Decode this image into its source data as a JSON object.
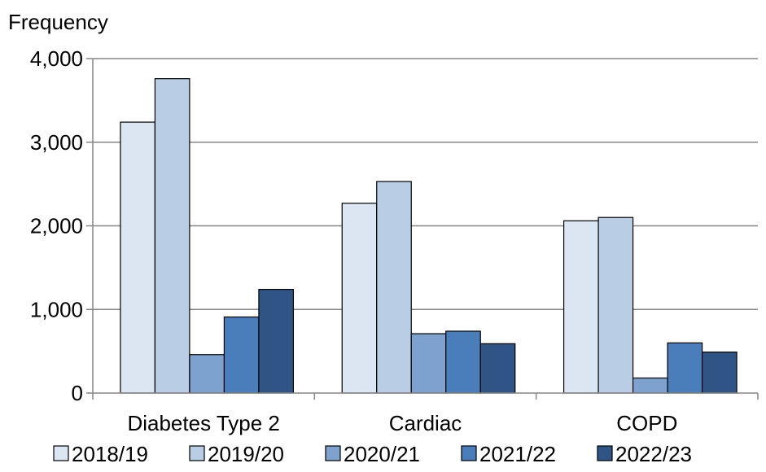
{
  "chart_data": {
    "type": "bar",
    "title": "",
    "xlabel": "",
    "ylabel": "Frequency",
    "ylim": [
      0,
      4000
    ],
    "yticks": [
      0,
      1000,
      2000,
      3000,
      4000
    ],
    "ytick_labels": [
      "0",
      "1,000",
      "2,000",
      "3,000",
      "4,000"
    ],
    "grid": "horizontal",
    "legend_position": "bottom",
    "categories": [
      "Diabetes Type 2",
      "Cardiac",
      "COPD"
    ],
    "series": [
      {
        "name": "2018/19",
        "color": "#dce6f2",
        "values": [
          3240,
          2270,
          2060
        ]
      },
      {
        "name": "2019/20",
        "color": "#b9cde5",
        "values": [
          3760,
          2530,
          2100
        ]
      },
      {
        "name": "2020/21",
        "color": "#7ea2cf",
        "values": [
          460,
          710,
          180
        ]
      },
      {
        "name": "2021/22",
        "color": "#4a7ebb",
        "values": [
          910,
          740,
          600
        ]
      },
      {
        "name": "2022/23",
        "color": "#2f5587",
        "values": [
          1240,
          590,
          490
        ]
      }
    ]
  }
}
